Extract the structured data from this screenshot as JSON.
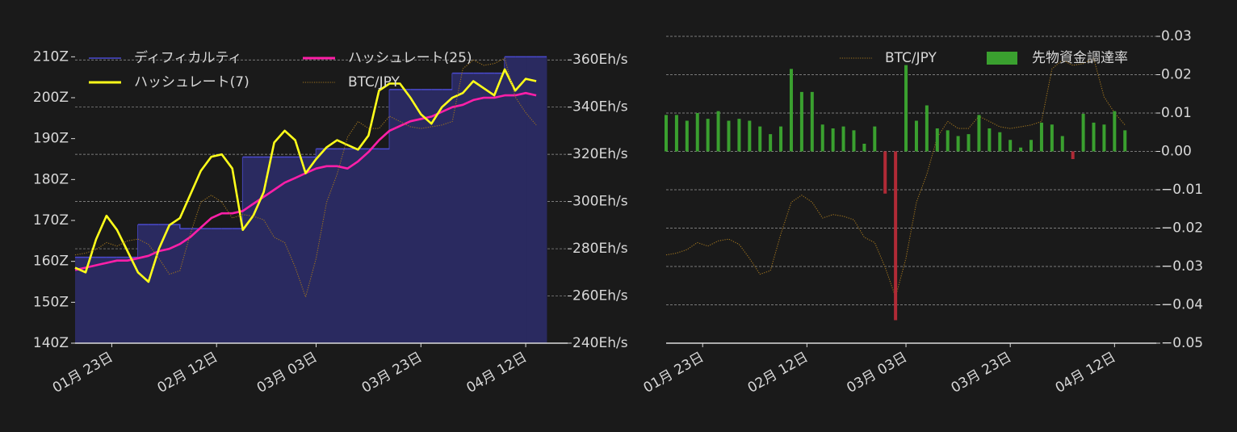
{
  "chart_data": [
    {
      "type": "line",
      "x": [
        "01-16",
        "01-18",
        "01-20",
        "01-22",
        "01-24",
        "01-26",
        "01-28",
        "01-30",
        "02-01",
        "02-03",
        "02-05",
        "02-07",
        "02-09",
        "02-11",
        "02-13",
        "02-15",
        "02-17",
        "02-19",
        "02-21",
        "02-23",
        "02-25",
        "02-27",
        "03-01",
        "03-03",
        "03-05",
        "03-07",
        "03-09",
        "03-11",
        "03-13",
        "03-15",
        "03-17",
        "03-19",
        "03-21",
        "03-23",
        "03-25",
        "03-27",
        "03-29",
        "03-31",
        "04-02",
        "04-04",
        "04-06",
        "04-08",
        "04-10",
        "04-12",
        "04-14"
      ],
      "xlim": [
        "01-16",
        "04-20"
      ],
      "xticks": [
        {
          "value": "01-23",
          "label": "01月 23日"
        },
        {
          "value": "02-12",
          "label": "02月 12日"
        },
        {
          "value": "03-03",
          "label": "03月 03日"
        },
        {
          "value": "03-23",
          "label": "03月 23日"
        },
        {
          "value": "04-12",
          "label": "04月 12日"
        }
      ],
      "ylim": [
        140,
        215
      ],
      "yticks": [
        {
          "value": 140,
          "label": "140Z"
        },
        {
          "value": 150,
          "label": "150Z"
        },
        {
          "value": 160,
          "label": "160Z"
        },
        {
          "value": 170,
          "label": "170Z"
        },
        {
          "value": 180,
          "label": "180Z"
        },
        {
          "value": 190,
          "label": "190Z"
        },
        {
          "value": 200,
          "label": "200Z"
        },
        {
          "value": 210,
          "label": "210Z"
        }
      ],
      "y2lim": [
        240,
        370
      ],
      "y2ticks": [
        {
          "value": 240,
          "label": "240Eh/s"
        },
        {
          "value": 260,
          "label": "260Eh/s"
        },
        {
          "value": 280,
          "label": "280Eh/s"
        },
        {
          "value": 300,
          "label": "300Eh/s"
        },
        {
          "value": 320,
          "label": "320Eh/s"
        },
        {
          "value": 340,
          "label": "340Eh/s"
        },
        {
          "value": 360,
          "label": "360Eh/s"
        }
      ],
      "y3lim": [
        2367000,
        4115000
      ],
      "grid": "y2",
      "series": [
        {
          "name": "ディフィカルティ",
          "style": "step-area",
          "axis": "y",
          "color": "#4b4bd0",
          "fill": "#2a2a60",
          "values": [
            161,
            161,
            161,
            161,
            161,
            161,
            169,
            169,
            169,
            169,
            168,
            168,
            168,
            168,
            168,
            168,
            185.5,
            185.5,
            185.5,
            185.5,
            185.5,
            185.5,
            185.5,
            187.5,
            187.5,
            187.5,
            187.5,
            187.5,
            187.5,
            187.5,
            202,
            202,
            202,
            202,
            202,
            202,
            206,
            206,
            206,
            206,
            206,
            210,
            210,
            210,
            210
          ]
        },
        {
          "name": "ハッシュレート(25)",
          "style": "line",
          "axis": "y2",
          "color": "#ff1fa8",
          "values": [
            271,
            272,
            273,
            274,
            275,
            275,
            276,
            277,
            279,
            280,
            282,
            285,
            289,
            293,
            295,
            295,
            296,
            299,
            302,
            305,
            308,
            310,
            312,
            314,
            315,
            315,
            314,
            317,
            321,
            326,
            330,
            332,
            334,
            335,
            336,
            338,
            340,
            341,
            343,
            344,
            344,
            345,
            345,
            346,
            345
          ]
        },
        {
          "name": "ハッシュレート(7)",
          "style": "line",
          "axis": "y2",
          "color": "#ffff1a",
          "values": [
            272,
            270,
            284,
            294,
            288,
            279,
            270,
            266,
            280,
            290,
            293,
            303,
            313,
            319,
            320,
            314,
            288,
            294,
            304,
            325,
            330,
            326,
            312,
            318,
            323,
            326,
            324,
            322,
            328,
            347,
            350,
            350,
            344,
            337,
            333,
            340,
            344,
            346,
            351,
            348,
            345,
            356,
            347,
            352,
            351
          ]
        },
        {
          "name": "BTC/JPY",
          "style": "dotted",
          "axis": "y3",
          "color": "#a0741e",
          "values": [
            2870000,
            2880000,
            2900000,
            2940000,
            2920000,
            2950000,
            2960000,
            2930000,
            2850000,
            2760000,
            2780000,
            2990000,
            3170000,
            3210000,
            3170000,
            3080000,
            3100000,
            3090000,
            3070000,
            2970000,
            2940000,
            2800000,
            2630000,
            2850000,
            3170000,
            3330000,
            3540000,
            3630000,
            3590000,
            3590000,
            3660000,
            3630000,
            3600000,
            3590000,
            3600000,
            3610000,
            3630000,
            3930000,
            3980000,
            3950000,
            3960000,
            3990000,
            3770000,
            3680000,
            3610000
          ]
        }
      ],
      "legend_order": [
        0,
        1,
        2,
        3
      ]
    },
    {
      "type": "bar",
      "x": [
        "01-16",
        "01-18",
        "01-20",
        "01-22",
        "01-24",
        "01-26",
        "01-28",
        "01-30",
        "02-01",
        "02-03",
        "02-05",
        "02-07",
        "02-09",
        "02-11",
        "02-13",
        "02-15",
        "02-17",
        "02-19",
        "02-21",
        "02-23",
        "02-25",
        "02-27",
        "03-01",
        "03-03",
        "03-05",
        "03-07",
        "03-09",
        "03-11",
        "03-13",
        "03-15",
        "03-17",
        "03-19",
        "03-21",
        "03-23",
        "03-25",
        "03-27",
        "03-29",
        "03-31",
        "04-02",
        "04-04",
        "04-06",
        "04-08",
        "04-10",
        "04-12",
        "04-14"
      ],
      "xlim": [
        "01-16",
        "04-20"
      ],
      "xticks": [
        {
          "value": "01-23",
          "label": "01月 23日"
        },
        {
          "value": "02-12",
          "label": "02月 12日"
        },
        {
          "value": "03-03",
          "label": "03月 03日"
        },
        {
          "value": "03-23",
          "label": "03月 23日"
        },
        {
          "value": "04-12",
          "label": "04月 12日"
        }
      ],
      "y2lim": [
        -0.05,
        0.03
      ],
      "y2ticks": [
        {
          "value": -0.05,
          "label": "−0.05"
        },
        {
          "value": -0.04,
          "label": "−0.04"
        },
        {
          "value": -0.03,
          "label": "−0.03"
        },
        {
          "value": -0.02,
          "label": "−0.02"
        },
        {
          "value": -0.01,
          "label": "−0.01"
        },
        {
          "value": 0,
          "label": "0.00"
        },
        0.01,
        0.02,
        0.03
      ],
      "y3lim": [
        2367000,
        4115000
      ],
      "grid": "y2",
      "series": [
        {
          "name": "BTC/JPY",
          "style": "dotted",
          "axis": "y3",
          "color": "#a0741e",
          "values": [
            2870000,
            2880000,
            2900000,
            2940000,
            2920000,
            2950000,
            2960000,
            2930000,
            2850000,
            2760000,
            2780000,
            2990000,
            3170000,
            3210000,
            3170000,
            3080000,
            3100000,
            3090000,
            3070000,
            2970000,
            2940000,
            2800000,
            2630000,
            2850000,
            3170000,
            3330000,
            3540000,
            3630000,
            3590000,
            3590000,
            3660000,
            3630000,
            3600000,
            3590000,
            3600000,
            3610000,
            3630000,
            3930000,
            3980000,
            3950000,
            3960000,
            3990000,
            3770000,
            3680000,
            3610000
          ]
        },
        {
          "name": "先物資金調達率",
          "style": "bar",
          "axis": "y2",
          "color": "#3aa02f",
          "negative_color": "#b02a36",
          "values": [
            0.0095,
            0.0095,
            0.008,
            0.01,
            0.0085,
            0.0105,
            0.008,
            0.0085,
            0.008,
            0.0065,
            0.0045,
            0.0065,
            0.0215,
            0.0155,
            0.0155,
            0.007,
            0.006,
            0.0065,
            0.0055,
            0.002,
            0.0065,
            -0.011,
            -0.044,
            0.0225,
            0.008,
            0.012,
            0.006,
            0.0055,
            0.004,
            0.0045,
            0.0095,
            0.006,
            0.005,
            0.003,
            0.001,
            0.003,
            0.0075,
            0.007,
            0.004,
            -0.002,
            0.0098,
            0.0075,
            0.007,
            0.0105,
            0.0055
          ]
        }
      ],
      "legend_order": [
        0,
        1
      ]
    }
  ]
}
